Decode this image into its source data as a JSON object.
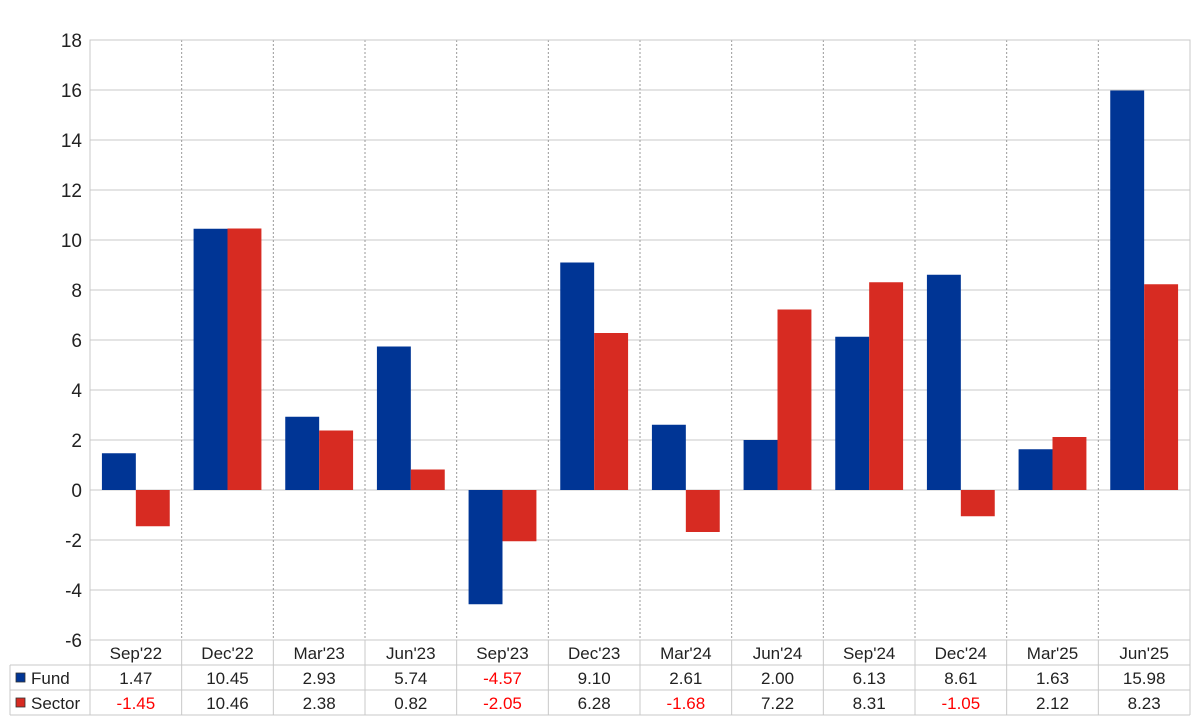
{
  "chart_data": {
    "type": "bar",
    "categories": [
      "Sep'22",
      "Dec'22",
      "Mar'23",
      "Jun'23",
      "Sep'23",
      "Dec'23",
      "Mar'24",
      "Jun'24",
      "Sep'24",
      "Dec'24",
      "Mar'25",
      "Jun'25"
    ],
    "series": [
      {
        "name": "Fund",
        "color": "#003595",
        "values": [
          1.47,
          10.45,
          2.93,
          5.74,
          -4.57,
          9.1,
          2.61,
          2.0,
          6.13,
          8.61,
          1.63,
          15.98
        ],
        "labels": [
          "1.47",
          "10.45",
          "2.93",
          "5.74",
          "-4.57",
          "9.10",
          "2.61",
          "2.00",
          "6.13",
          "8.61",
          "1.63",
          "15.98"
        ]
      },
      {
        "name": "Sector",
        "color": "#d72b22",
        "values": [
          -1.45,
          10.46,
          2.38,
          0.82,
          -2.05,
          6.28,
          -1.68,
          7.22,
          8.31,
          -1.05,
          2.12,
          8.23
        ],
        "labels": [
          "-1.45",
          "10.46",
          "2.38",
          "0.82",
          "-2.05",
          "6.28",
          "-1.68",
          "7.22",
          "8.31",
          "-1.05",
          "2.12",
          "8.23"
        ]
      }
    ],
    "ylim": [
      -6,
      18
    ],
    "yticks": [
      "-6",
      "-4",
      "-2",
      "0",
      "2",
      "4",
      "6",
      "8",
      "10",
      "12",
      "14",
      "16",
      "18"
    ],
    "grid": true,
    "data_table": true,
    "negative_value_color": "#ff0000"
  }
}
